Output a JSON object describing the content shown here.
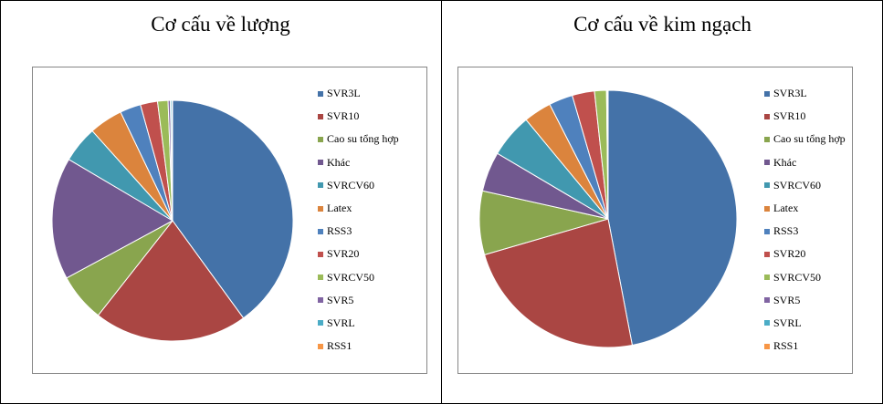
{
  "chart_data": [
    {
      "type": "pie",
      "title": "Cơ cấu về lượng",
      "categories": [
        "SVR3L",
        "SVR10",
        "Cao su tổng hợp",
        "Khác",
        "SVRCV60",
        "Latex",
        "RSS3",
        "SVR20",
        "SVRCV50",
        "SVR5",
        "SVRL",
        "RSS1"
      ],
      "values": [
        40.0,
        20.6,
        6.5,
        16.4,
        4.9,
        4.5,
        2.8,
        2.3,
        1.4,
        0.3,
        0.2,
        0.1
      ],
      "colors": [
        "#4472A8",
        "#AA4643",
        "#89A54E",
        "#71588F",
        "#4198AF",
        "#DB843D",
        "#4F81BD",
        "#C0504D",
        "#9BBB59",
        "#8064A2",
        "#4BACC6",
        "#F79646"
      ],
      "legend_position": "right"
    },
    {
      "type": "pie",
      "title": "Cơ cấu về kim ngạch",
      "categories": [
        "SVR3L",
        "SVR10",
        "Cao su tổng hợp",
        "Khác",
        "SVRCV60",
        "Latex",
        "RSS3",
        "SVR20",
        "SVRCV50",
        "SVR5",
        "SVRL",
        "RSS1"
      ],
      "values": [
        47.0,
        23.5,
        8.0,
        5.0,
        5.5,
        3.5,
        3.0,
        2.8,
        1.5,
        0.1,
        0.05,
        0.05
      ],
      "colors": [
        "#4472A8",
        "#AA4643",
        "#89A54E",
        "#71588F",
        "#4198AF",
        "#DB843D",
        "#4F81BD",
        "#C0504D",
        "#9BBB59",
        "#8064A2",
        "#4BACC6",
        "#F79646"
      ],
      "legend_position": "right"
    }
  ]
}
